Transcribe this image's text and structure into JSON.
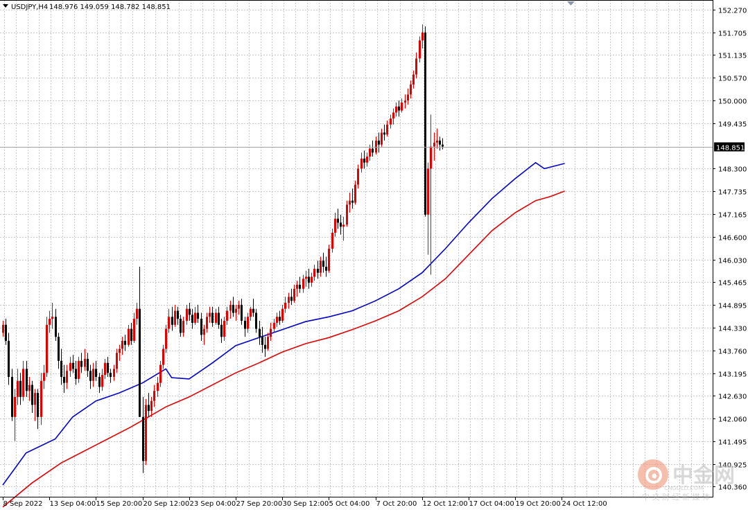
{
  "header": {
    "symbol": "USDJPY,H4",
    "ohlc": "148.976 149.059 148.782 148.851"
  },
  "watermark": {
    "brand": "中金网",
    "domain": "CNGOLD.COM",
    "tagline": "中 文 财 经 新 媒 体"
  },
  "colors": {
    "bull_candle": "#e00000",
    "bear_candle": "#000000",
    "ma_fast": "#0000c8",
    "ma_slow": "#e00000",
    "grid": "#c8c8c8",
    "price_line": "#a0a0a0",
    "price_label_bg": "#000000",
    "price_label_text": "#ffffff"
  },
  "chart_data": {
    "type": "candlestick",
    "symbol": "USDJPY",
    "timeframe": "H4",
    "grid": true,
    "current_price": 148.851,
    "current_price_label": "148.851",
    "ylim": [
      140.09,
      152.51
    ],
    "y_ticks": [
      "152.270",
      "151.705",
      "151.135",
      "150.570",
      "150.000",
      "149.435",
      "148.300",
      "147.735",
      "147.165",
      "146.600",
      "146.030",
      "145.465",
      "144.895",
      "144.330",
      "143.760",
      "143.195",
      "142.630",
      "142.060",
      "141.495",
      "140.925",
      "140.360"
    ],
    "x_ticks": [
      "8 Sep 2022",
      "13 Sep 04:00",
      "15 Sep 20:00",
      "20 Sep 12:00",
      "23 Sep 04:00",
      "27 Sep 20:00",
      "30 Sep 12:00",
      "5 Oct 04:00",
      "7 Oct 20:00",
      "12 Oct 12:00",
      "17 Oct 04:00",
      "19 Oct 20:00",
      "24 Oct 12:00"
    ],
    "x_tick_bar_index": [
      0,
      16,
      32,
      48,
      64,
      80,
      96,
      112,
      128,
      144,
      160,
      176,
      192
    ],
    "series": [
      {
        "name": "",
        "kind": "ma",
        "color": "#0000c8",
        "values": [
          [
            0,
            140.4
          ],
          [
            8,
            141.2
          ],
          [
            18,
            141.55
          ],
          [
            24,
            142.1
          ],
          [
            32,
            142.5
          ],
          [
            40,
            142.7
          ],
          [
            48,
            142.95
          ],
          [
            56,
            143.3
          ],
          [
            58,
            143.08
          ],
          [
            64,
            143.05
          ],
          [
            72,
            143.45
          ],
          [
            80,
            143.88
          ],
          [
            88,
            144.08
          ],
          [
            96,
            144.28
          ],
          [
            104,
            144.48
          ],
          [
            112,
            144.6
          ],
          [
            120,
            144.75
          ],
          [
            128,
            145.0
          ],
          [
            136,
            145.3
          ],
          [
            144,
            145.7
          ],
          [
            152,
            146.3
          ],
          [
            160,
            146.95
          ],
          [
            168,
            147.55
          ],
          [
            176,
            148.05
          ],
          [
            183,
            148.45
          ],
          [
            186,
            148.3
          ],
          [
            193,
            148.43
          ]
        ]
      },
      {
        "name": "",
        "kind": "ma",
        "color": "#e00000",
        "values": [
          [
            0,
            139.85
          ],
          [
            10,
            140.45
          ],
          [
            20,
            140.95
          ],
          [
            32,
            141.4
          ],
          [
            44,
            141.85
          ],
          [
            56,
            142.35
          ],
          [
            64,
            142.6
          ],
          [
            72,
            142.9
          ],
          [
            80,
            143.2
          ],
          [
            88,
            143.45
          ],
          [
            96,
            143.72
          ],
          [
            104,
            143.93
          ],
          [
            112,
            144.08
          ],
          [
            120,
            144.28
          ],
          [
            128,
            144.5
          ],
          [
            136,
            144.75
          ],
          [
            144,
            145.1
          ],
          [
            152,
            145.55
          ],
          [
            160,
            146.15
          ],
          [
            168,
            146.75
          ],
          [
            176,
            147.2
          ],
          [
            183,
            147.5
          ],
          [
            188,
            147.6
          ],
          [
            193,
            147.74
          ]
        ]
      }
    ],
    "candles": [
      [
        144.2,
        144.5,
        144.1,
        144.4
      ],
      [
        144.4,
        144.55,
        143.9,
        144.0
      ],
      [
        144.0,
        144.2,
        142.9,
        143.1
      ],
      [
        143.1,
        143.3,
        142.0,
        142.1
      ],
      [
        142.1,
        142.8,
        141.5,
        142.6
      ],
      [
        142.6,
        143.3,
        142.4,
        143.0
      ],
      [
        143.0,
        143.2,
        142.4,
        142.6
      ],
      [
        142.6,
        143.5,
        142.5,
        143.3
      ],
      [
        143.3,
        143.5,
        142.6,
        142.75
      ],
      [
        142.75,
        143.1,
        142.5,
        142.9
      ],
      [
        142.9,
        143.0,
        142.2,
        142.4
      ],
      [
        142.4,
        142.8,
        142.0,
        142.7
      ],
      [
        142.7,
        142.8,
        141.8,
        142.1
      ],
      [
        142.1,
        143.2,
        141.9,
        143.0
      ],
      [
        143.0,
        143.4,
        142.8,
        143.2
      ],
      [
        143.2,
        144.6,
        143.1,
        144.4
      ],
      [
        144.4,
        144.75,
        144.2,
        144.55
      ],
      [
        144.55,
        144.95,
        144.3,
        144.6
      ],
      [
        144.6,
        144.8,
        144.0,
        144.1
      ],
      [
        144.1,
        144.2,
        143.3,
        143.5
      ],
      [
        143.5,
        143.8,
        142.9,
        143.1
      ],
      [
        143.1,
        143.4,
        142.7,
        142.95
      ],
      [
        142.95,
        143.4,
        142.8,
        143.25
      ],
      [
        143.25,
        143.6,
        143.1,
        143.45
      ],
      [
        143.45,
        143.65,
        143.2,
        143.3
      ],
      [
        143.3,
        143.5,
        142.9,
        143.05
      ],
      [
        143.05,
        143.6,
        142.95,
        143.5
      ],
      [
        143.5,
        143.7,
        143.2,
        143.35
      ],
      [
        143.35,
        143.8,
        143.25,
        143.55
      ],
      [
        143.55,
        143.7,
        143.1,
        143.25
      ],
      [
        143.25,
        143.4,
        142.8,
        143.0
      ],
      [
        143.0,
        143.45,
        142.85,
        143.3
      ],
      [
        143.3,
        143.5,
        143.0,
        143.1
      ],
      [
        143.1,
        143.2,
        142.7,
        142.85
      ],
      [
        142.85,
        143.3,
        142.75,
        143.15
      ],
      [
        143.15,
        143.55,
        143.05,
        143.45
      ],
      [
        143.45,
        143.6,
        143.1,
        143.2
      ],
      [
        143.2,
        143.3,
        142.95,
        143.1
      ],
      [
        143.1,
        143.4,
        143.0,
        143.3
      ],
      [
        143.3,
        143.8,
        143.2,
        143.7
      ],
      [
        143.7,
        143.9,
        143.5,
        143.8
      ],
      [
        143.8,
        144.1,
        143.65,
        144.0
      ],
      [
        144.0,
        144.15,
        143.75,
        143.9
      ],
      [
        143.9,
        144.4,
        143.85,
        144.3
      ],
      [
        144.3,
        144.45,
        143.9,
        144.0
      ],
      [
        144.0,
        144.7,
        143.95,
        144.55
      ],
      [
        144.55,
        144.95,
        144.4,
        144.8
      ],
      [
        144.8,
        145.85,
        142.1,
        142.1
      ],
      [
        142.1,
        142.6,
        140.7,
        141.0
      ],
      [
        141.0,
        142.55,
        140.9,
        142.4
      ],
      [
        142.4,
        142.7,
        142.1,
        142.25
      ],
      [
        142.25,
        142.6,
        142.1,
        142.5
      ],
      [
        142.5,
        142.9,
        142.35,
        142.75
      ],
      [
        142.75,
        143.1,
        142.6,
        142.95
      ],
      [
        142.95,
        143.5,
        142.85,
        143.4
      ],
      [
        143.4,
        143.9,
        143.3,
        143.8
      ],
      [
        143.8,
        144.4,
        143.7,
        144.3
      ],
      [
        144.3,
        144.8,
        144.2,
        144.6
      ],
      [
        144.6,
        144.85,
        144.25,
        144.4
      ],
      [
        144.4,
        144.9,
        144.35,
        144.75
      ],
      [
        144.75,
        144.85,
        144.4,
        144.55
      ],
      [
        144.55,
        144.65,
        144.1,
        144.2
      ],
      [
        144.2,
        144.6,
        144.1,
        144.5
      ],
      [
        144.5,
        144.9,
        144.4,
        144.8
      ],
      [
        144.8,
        144.95,
        144.5,
        144.65
      ],
      [
        144.65,
        144.8,
        144.3,
        144.45
      ],
      [
        144.45,
        144.85,
        144.4,
        144.7
      ],
      [
        144.7,
        144.9,
        144.45,
        144.55
      ],
      [
        144.55,
        144.7,
        144.0,
        144.15
      ],
      [
        144.15,
        144.4,
        143.9,
        144.3
      ],
      [
        144.3,
        144.7,
        144.2,
        144.6
      ],
      [
        144.6,
        144.85,
        144.45,
        144.7
      ],
      [
        144.7,
        144.85,
        144.35,
        144.45
      ],
      [
        144.45,
        144.8,
        144.4,
        144.7
      ],
      [
        144.7,
        144.85,
        144.3,
        144.4
      ],
      [
        144.4,
        144.55,
        143.95,
        144.1
      ],
      [
        144.1,
        144.6,
        144.0,
        144.5
      ],
      [
        144.5,
        144.85,
        144.4,
        144.75
      ],
      [
        144.75,
        145.0,
        144.55,
        144.9
      ],
      [
        144.9,
        145.1,
        144.6,
        144.7
      ],
      [
        144.7,
        144.9,
        144.5,
        144.8
      ],
      [
        144.8,
        145.0,
        144.65,
        144.9
      ],
      [
        144.9,
        145.05,
        144.4,
        144.5
      ],
      [
        144.5,
        144.6,
        144.1,
        144.3
      ],
      [
        144.3,
        144.7,
        144.2,
        144.6
      ],
      [
        144.6,
        144.85,
        144.5,
        144.8
      ],
      [
        144.8,
        145.05,
        144.6,
        144.7
      ],
      [
        144.7,
        144.8,
        144.2,
        144.3
      ],
      [
        144.3,
        144.5,
        143.9,
        144.1
      ],
      [
        144.1,
        144.35,
        143.7,
        143.9
      ],
      [
        143.9,
        144.1,
        143.6,
        143.8
      ],
      [
        143.8,
        144.2,
        143.75,
        144.1
      ],
      [
        144.1,
        144.45,
        144.0,
        144.3
      ],
      [
        144.3,
        144.55,
        144.2,
        144.45
      ],
      [
        144.45,
        144.7,
        144.35,
        144.6
      ],
      [
        144.6,
        144.75,
        144.4,
        144.5
      ],
      [
        144.5,
        144.9,
        144.45,
        144.8
      ],
      [
        144.8,
        145.1,
        144.7,
        144.95
      ],
      [
        144.95,
        145.2,
        144.8,
        145.1
      ],
      [
        145.1,
        145.3,
        144.9,
        145.0
      ],
      [
        145.0,
        145.4,
        144.95,
        145.3
      ],
      [
        145.3,
        145.5,
        145.1,
        145.4
      ],
      [
        145.4,
        145.6,
        145.2,
        145.3
      ],
      [
        145.3,
        145.65,
        145.2,
        145.55
      ],
      [
        145.55,
        145.75,
        145.35,
        145.6
      ],
      [
        145.6,
        145.8,
        145.3,
        145.45
      ],
      [
        145.45,
        145.7,
        145.35,
        145.6
      ],
      [
        145.6,
        145.9,
        145.5,
        145.8
      ],
      [
        145.8,
        146.0,
        145.55,
        145.7
      ],
      [
        145.7,
        146.1,
        145.6,
        146.0
      ],
      [
        146.0,
        146.2,
        145.7,
        145.85
      ],
      [
        145.85,
        146.1,
        145.6,
        145.75
      ],
      [
        145.75,
        146.4,
        145.7,
        146.3
      ],
      [
        146.3,
        146.8,
        146.2,
        146.7
      ],
      [
        146.7,
        147.2,
        146.6,
        147.05
      ],
      [
        147.05,
        147.3,
        146.8,
        146.95
      ],
      [
        146.95,
        147.15,
        146.65,
        146.85
      ],
      [
        146.85,
        147.1,
        146.5,
        146.9
      ],
      [
        146.9,
        147.5,
        146.85,
        147.4
      ],
      [
        147.4,
        147.7,
        147.2,
        147.5
      ],
      [
        147.5,
        147.8,
        147.3,
        147.45
      ],
      [
        147.45,
        148.0,
        147.4,
        147.9
      ],
      [
        147.9,
        148.4,
        147.8,
        148.3
      ],
      [
        148.3,
        148.7,
        148.2,
        148.55
      ],
      [
        148.55,
        148.75,
        148.3,
        148.45
      ],
      [
        148.45,
        148.7,
        148.35,
        148.6
      ],
      [
        148.6,
        148.9,
        148.5,
        148.8
      ],
      [
        148.8,
        149.0,
        148.6,
        148.7
      ],
      [
        148.7,
        149.1,
        148.65,
        149.0
      ],
      [
        149.0,
        149.2,
        148.7,
        148.9
      ],
      [
        148.9,
        149.3,
        148.85,
        149.2
      ],
      [
        149.2,
        149.4,
        149.0,
        149.15
      ],
      [
        149.15,
        149.5,
        149.1,
        149.4
      ],
      [
        149.4,
        149.65,
        149.3,
        149.55
      ],
      [
        149.55,
        149.8,
        149.4,
        149.7
      ],
      [
        149.7,
        149.95,
        149.6,
        149.85
      ],
      [
        149.85,
        150.0,
        149.6,
        149.75
      ],
      [
        149.75,
        150.05,
        149.7,
        149.95
      ],
      [
        149.95,
        150.15,
        149.8,
        150.0
      ],
      [
        150.0,
        150.3,
        149.9,
        150.15
      ],
      [
        150.15,
        150.5,
        150.05,
        150.4
      ],
      [
        150.4,
        150.75,
        150.3,
        150.65
      ],
      [
        150.65,
        151.2,
        150.55,
        151.05
      ],
      [
        151.05,
        151.6,
        150.95,
        151.5
      ],
      [
        151.5,
        151.9,
        151.3,
        151.7
      ],
      [
        151.7,
        151.85,
        147.1,
        147.15
      ],
      [
        147.15,
        148.45,
        146.15,
        148.3
      ],
      [
        148.3,
        149.65,
        145.65,
        148.85
      ],
      [
        148.85,
        149.2,
        148.5,
        148.95
      ],
      [
        148.95,
        149.3,
        148.8,
        149.0
      ],
      [
        149.0,
        149.1,
        148.75,
        148.9
      ],
      [
        148.9,
        149.06,
        148.78,
        148.85
      ]
    ]
  }
}
